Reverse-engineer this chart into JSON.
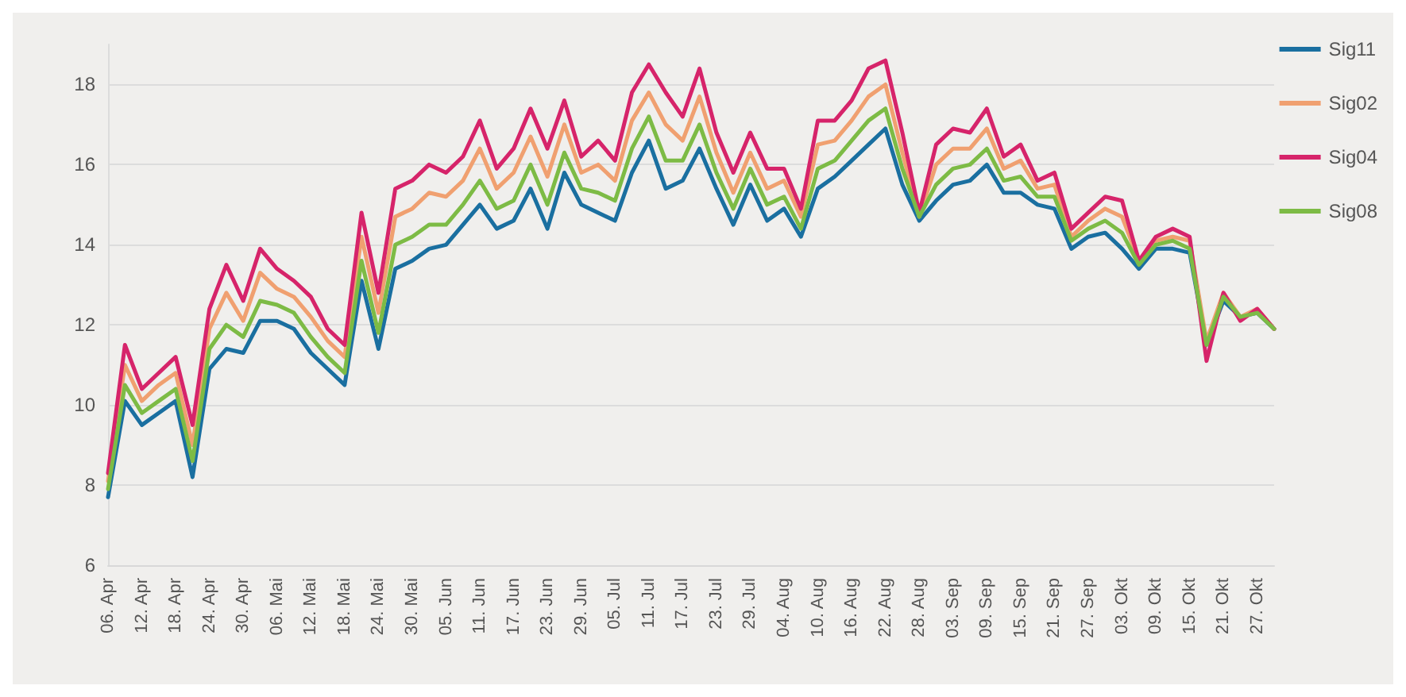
{
  "chart_data": {
    "type": "line",
    "categories": [
      "06. Apr",
      null,
      "12. Apr",
      null,
      "18. Apr",
      null,
      "24. Apr",
      null,
      "30. Apr",
      null,
      "06. Mai",
      null,
      "12. Mai",
      null,
      "18. Mai",
      null,
      "24. Mai",
      null,
      "30. Mai",
      null,
      "05. Jun",
      null,
      "11. Jun",
      null,
      "17. Jun",
      null,
      "23. Jun",
      null,
      "29. Jun",
      null,
      "05. Jul",
      null,
      "11. Jul",
      null,
      "17. Jul",
      null,
      "23. Jul",
      null,
      "29. Jul",
      null,
      "04. Aug",
      null,
      "10. Aug",
      null,
      "16. Aug",
      null,
      "22. Aug",
      null,
      "28. Aug",
      null,
      "03. Sep",
      null,
      "09. Sep",
      null,
      "15. Sep",
      null,
      "21. Sep",
      null,
      "27. Sep",
      null,
      "03. Okt",
      null,
      "09. Okt",
      null,
      "15. Okt",
      null,
      "21. Okt",
      null,
      "27. Okt",
      null
    ],
    "series": [
      {
        "name": "Sig11",
        "color": "#1a6fa0",
        "values": [
          7.7,
          10.1,
          9.5,
          9.8,
          10.1,
          8.2,
          10.9,
          11.4,
          11.3,
          12.1,
          12.1,
          11.9,
          11.3,
          10.9,
          10.5,
          13.1,
          11.4,
          13.4,
          13.6,
          13.9,
          14.0,
          14.5,
          15.0,
          14.4,
          14.6,
          15.4,
          14.4,
          15.8,
          15.0,
          14.8,
          14.6,
          15.8,
          16.6,
          15.4,
          15.6,
          16.4,
          15.4,
          14.5,
          15.5,
          14.6,
          14.9,
          14.2,
          15.4,
          15.7,
          16.1,
          16.5,
          16.9,
          15.5,
          14.6,
          15.1,
          15.5,
          15.6,
          16.0,
          15.3,
          15.3,
          15.0,
          14.9,
          13.9,
          14.2,
          14.3,
          13.9,
          13.4,
          13.9,
          13.9,
          13.8,
          11.5,
          12.6,
          12.2,
          12.3,
          11.9
        ]
      },
      {
        "name": "Sig02",
        "color": "#f0a070",
        "values": [
          8.1,
          11.0,
          10.1,
          10.5,
          10.8,
          9.0,
          11.9,
          12.8,
          12.1,
          13.3,
          12.9,
          12.7,
          12.2,
          11.6,
          11.2,
          14.2,
          12.3,
          14.7,
          14.9,
          15.3,
          15.2,
          15.6,
          16.4,
          15.4,
          15.8,
          16.7,
          15.7,
          17.0,
          15.8,
          16.0,
          15.6,
          17.1,
          17.8,
          17.0,
          16.6,
          17.7,
          16.3,
          15.3,
          16.3,
          15.4,
          15.6,
          14.7,
          16.5,
          16.6,
          17.1,
          17.7,
          18.0,
          16.3,
          14.7,
          16.0,
          16.4,
          16.4,
          16.9,
          15.9,
          16.1,
          15.4,
          15.5,
          14.2,
          14.6,
          14.9,
          14.7,
          13.6,
          14.1,
          14.2,
          14.1,
          11.6,
          12.8,
          12.2,
          12.4,
          11.9
        ]
      },
      {
        "name": "Sig04",
        "color": "#d6246a",
        "values": [
          8.3,
          11.5,
          10.4,
          10.8,
          11.2,
          9.5,
          12.4,
          13.5,
          12.6,
          13.9,
          13.4,
          13.1,
          12.7,
          11.9,
          11.5,
          14.8,
          12.8,
          15.4,
          15.6,
          16.0,
          15.8,
          16.2,
          17.1,
          15.9,
          16.4,
          17.4,
          16.4,
          17.6,
          16.2,
          16.6,
          16.1,
          17.8,
          18.5,
          17.8,
          17.2,
          18.4,
          16.8,
          15.8,
          16.8,
          15.9,
          15.9,
          14.9,
          17.1,
          17.1,
          17.6,
          18.4,
          18.6,
          16.8,
          14.8,
          16.5,
          16.9,
          16.8,
          17.4,
          16.2,
          16.5,
          15.6,
          15.8,
          14.4,
          14.8,
          15.2,
          15.1,
          13.6,
          14.2,
          14.4,
          14.2,
          11.1,
          12.8,
          12.1,
          12.4,
          11.9
        ]
      },
      {
        "name": "Sig08",
        "color": "#7dbb45",
        "values": [
          7.9,
          10.5,
          9.8,
          10.1,
          10.4,
          8.6,
          11.4,
          12.0,
          11.7,
          12.6,
          12.5,
          12.3,
          11.7,
          11.2,
          10.8,
          13.6,
          11.8,
          14.0,
          14.2,
          14.5,
          14.5,
          15.0,
          15.6,
          14.9,
          15.1,
          16.0,
          15.0,
          16.3,
          15.4,
          15.3,
          15.1,
          16.4,
          17.2,
          16.1,
          16.1,
          17.0,
          15.8,
          14.9,
          15.9,
          15.0,
          15.2,
          14.4,
          15.9,
          16.1,
          16.6,
          17.1,
          17.4,
          15.9,
          14.7,
          15.5,
          15.9,
          16.0,
          16.4,
          15.6,
          15.7,
          15.2,
          15.2,
          14.1,
          14.4,
          14.6,
          14.3,
          13.5,
          14.0,
          14.1,
          13.9,
          11.5,
          12.7,
          12.2,
          12.3,
          11.9
        ]
      }
    ],
    "ylim": [
      6,
      19
    ],
    "yticks": [
      6,
      8,
      10,
      12,
      14,
      16,
      18
    ],
    "grid": "y",
    "legend": "top right",
    "marker": "none",
    "line_style": "solid"
  }
}
